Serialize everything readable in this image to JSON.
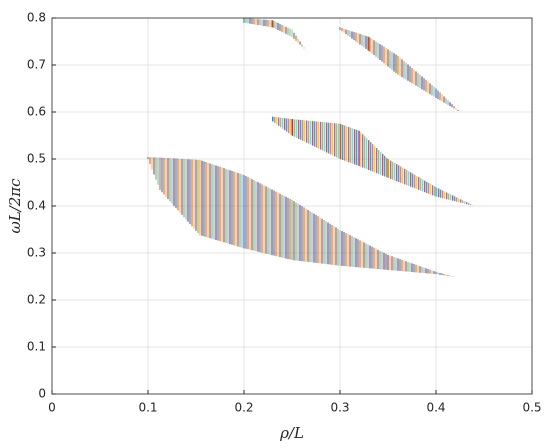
{
  "chart_data": {
    "type": "range",
    "x_label": "ρ/L",
    "y_label": "ωL/2πc",
    "xlim": [
      0,
      0.5
    ],
    "ylim": [
      0,
      0.8
    ],
    "xticks": [
      0,
      0.1,
      0.2,
      0.3,
      0.4,
      0.5
    ],
    "yticks": [
      0,
      0.1,
      0.2,
      0.3,
      0.4,
      0.5,
      0.6,
      0.7,
      0.8
    ],
    "grid": true,
    "colors": [
      "#0072bd",
      "#d95319",
      "#edb120",
      "#7e2f8e",
      "#77ac30",
      "#4dbeee",
      "#a2142f"
    ],
    "series": [
      {
        "x": [
          0.1,
          0.1125,
          0.154,
          0.2,
          0.25,
          0.3,
          0.35,
          0.4,
          0.42
        ],
        "lower": [
          0.5,
          0.434,
          0.338,
          0.31,
          0.285,
          0.273,
          0.264,
          0.255,
          0.249
        ],
        "upper": [
          0.504,
          0.503,
          0.498,
          0.466,
          0.413,
          0.349,
          0.296,
          0.26,
          0.249
        ]
      },
      {
        "x": [
          0.23,
          0.25,
          0.3,
          0.32,
          0.35,
          0.4,
          0.44
        ],
        "lower": [
          0.58,
          0.55,
          0.5,
          0.485,
          0.46,
          0.42,
          0.4
        ],
        "upper": [
          0.59,
          0.585,
          0.575,
          0.56,
          0.5,
          0.44,
          0.4
        ]
      },
      {
        "x": [
          0.2,
          0.23,
          0.25,
          0.265
        ],
        "lower": [
          0.79,
          0.78,
          0.76,
          0.73
        ],
        "upper": [
          0.8,
          0.795,
          0.775,
          0.73
        ]
      },
      {
        "x": [
          0.3,
          0.33,
          0.36,
          0.4,
          0.425
        ],
        "lower": [
          0.775,
          0.73,
          0.68,
          0.63,
          0.6
        ],
        "upper": [
          0.78,
          0.76,
          0.72,
          0.65,
          0.6
        ]
      }
    ]
  }
}
